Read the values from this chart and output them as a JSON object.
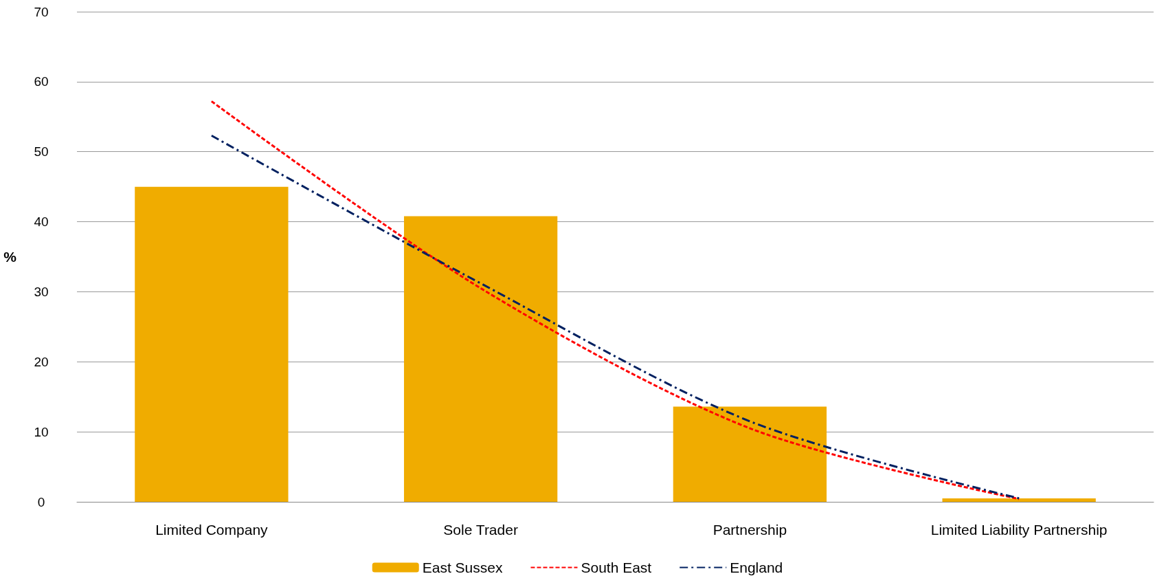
{
  "chart_data": {
    "type": "bar",
    "ylabel": "%",
    "categories": [
      "Limited Company",
      "Sole Trader",
      "Partnership",
      "Limited Liability Partnership"
    ],
    "series": [
      {
        "name": "East Sussex",
        "color": "#f0ac00",
        "values": [
          45,
          40.8,
          13.6,
          0.5
        ]
      },
      {
        "name": "South East",
        "type": "line",
        "color": "#ff0000",
        "line_style": "dashed",
        "values": [
          57.2,
          30.5,
          10.5,
          0.4
        ]
      },
      {
        "name": "England",
        "type": "line",
        "color": "#002060",
        "line_style": "dashdot",
        "values": [
          52.3,
          31.2,
          11.5,
          0.5
        ]
      }
    ],
    "ylim": [
      0,
      70
    ],
    "yticks": [
      0,
      10,
      20,
      30,
      40,
      50,
      60,
      70
    ],
    "grid": "y",
    "legend": "bottom",
    "marker": "none"
  }
}
